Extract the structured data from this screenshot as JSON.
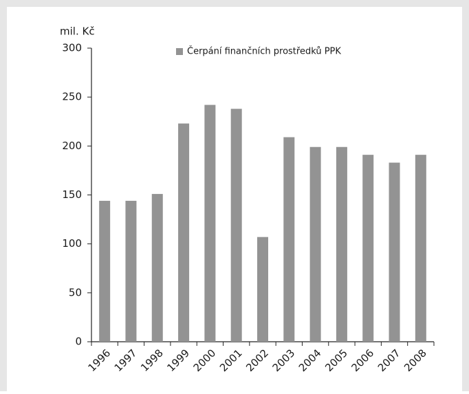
{
  "chart_data": {
    "type": "bar",
    "y_axis_label": "mil. Kč",
    "categories": [
      "1996",
      "1997",
      "1998",
      "1999",
      "2000",
      "2001",
      "2002",
      "2003",
      "2004",
      "2005",
      "2006",
      "2007",
      "2008"
    ],
    "series": [
      {
        "name": "Čerpání finančních prostředků PPK",
        "color": "#939393",
        "values": [
          144,
          144,
          151,
          223,
          242,
          238,
          107,
          209,
          199,
          199,
          191,
          183,
          191
        ]
      }
    ],
    "ylim": [
      0,
      300
    ],
    "yticks": [
      0,
      50,
      100,
      150,
      200,
      250,
      300
    ],
    "grid": false
  }
}
